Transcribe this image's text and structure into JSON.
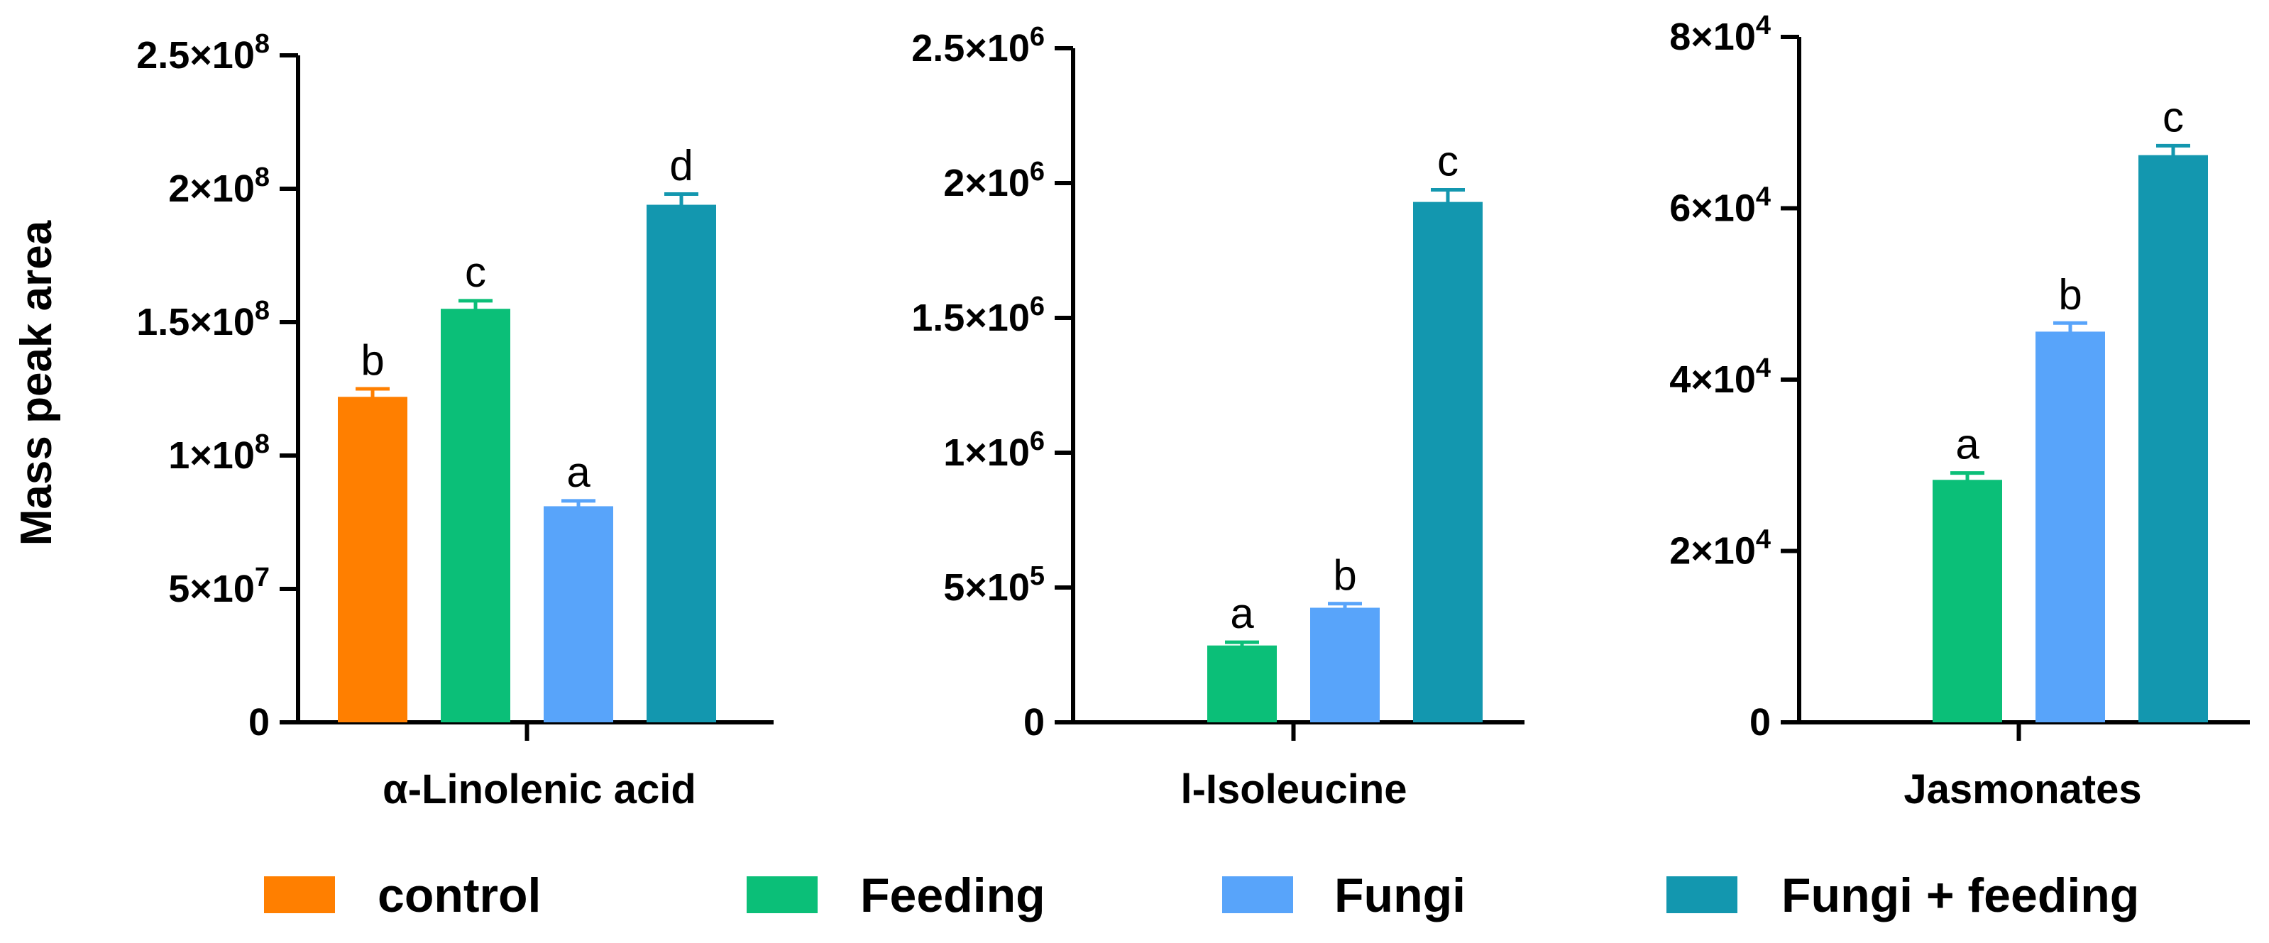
{
  "chart_data": [
    {
      "type": "bar",
      "title": "",
      "xlabel": "α-Linolenic acid",
      "ylabel": "Mass peak area",
      "ylim": [
        0,
        250000000
      ],
      "ticks": [
        {
          "value": 0,
          "mant": "0",
          "exp": ""
        },
        {
          "value": 50000000,
          "mant": "5×10",
          "exp": "7"
        },
        {
          "value": 100000000,
          "mant": "1×10",
          "exp": "8"
        },
        {
          "value": 150000000,
          "mant": "1.5×10",
          "exp": "8"
        },
        {
          "value": 200000000,
          "mant": "2×10",
          "exp": "8"
        },
        {
          "value": 250000000,
          "mant": "2.5×10",
          "exp": "8"
        }
      ],
      "bars": [
        {
          "series": "control",
          "value": 122000000,
          "error": 3000000,
          "sig": "b"
        },
        {
          "series": "Feeding",
          "value": 155000000,
          "error": 3000000,
          "sig": "c"
        },
        {
          "series": "Fungi",
          "value": 81000000,
          "error": 2000000,
          "sig": "a"
        },
        {
          "series": "Fungi + feeding",
          "value": 194000000,
          "error": 4000000,
          "sig": "d"
        }
      ]
    },
    {
      "type": "bar",
      "title": "",
      "xlabel": "l-Isoleucine",
      "ylabel": "",
      "ylim": [
        0,
        2500000
      ],
      "ticks": [
        {
          "value": 0,
          "mant": "0",
          "exp": ""
        },
        {
          "value": 500000,
          "mant": "5×10",
          "exp": "5"
        },
        {
          "value": 1000000,
          "mant": "1×10",
          "exp": "6"
        },
        {
          "value": 1500000,
          "mant": "1.5×10",
          "exp": "6"
        },
        {
          "value": 2000000,
          "mant": "2×10",
          "exp": "6"
        },
        {
          "value": 2500000,
          "mant": "2.5×10",
          "exp": "6"
        }
      ],
      "bars": [
        {
          "series": "control",
          "value": null,
          "error": null,
          "sig": ""
        },
        {
          "series": "Feeding",
          "value": 285000,
          "error": 12000,
          "sig": "a"
        },
        {
          "series": "Fungi",
          "value": 425000,
          "error": 15000,
          "sig": "b"
        },
        {
          "series": "Fungi + feeding",
          "value": 1930000,
          "error": 45000,
          "sig": "c"
        }
      ]
    },
    {
      "type": "bar",
      "title": "",
      "xlabel": "Jasmonates",
      "ylabel": "",
      "ylim": [
        0,
        80000
      ],
      "ticks": [
        {
          "value": 0,
          "mant": "0",
          "exp": ""
        },
        {
          "value": 20000,
          "mant": "2×10",
          "exp": "4"
        },
        {
          "value": 40000,
          "mant": "4×10",
          "exp": "4"
        },
        {
          "value": 60000,
          "mant": "6×10",
          "exp": "4"
        },
        {
          "value": 80000,
          "mant": "8×10",
          "exp": "4"
        }
      ],
      "bars": [
        {
          "series": "control",
          "value": null,
          "error": null,
          "sig": ""
        },
        {
          "series": "Feeding",
          "value": 28300,
          "error": 800,
          "sig": "a"
        },
        {
          "series": "Fungi",
          "value": 45600,
          "error": 1000,
          "sig": "b"
        },
        {
          "series": "Fungi + feeding",
          "value": 66200,
          "error": 1100,
          "sig": "c"
        }
      ]
    }
  ],
  "legend": {
    "placement": "bottom",
    "items": [
      {
        "label": "control",
        "color": "#FF7F00"
      },
      {
        "label": "Feeding",
        "color": "#0BBF78"
      },
      {
        "label": "Fungi",
        "color": "#58A4FA"
      },
      {
        "label": "Fungi + feeding",
        "color": "#1397AF"
      }
    ]
  }
}
